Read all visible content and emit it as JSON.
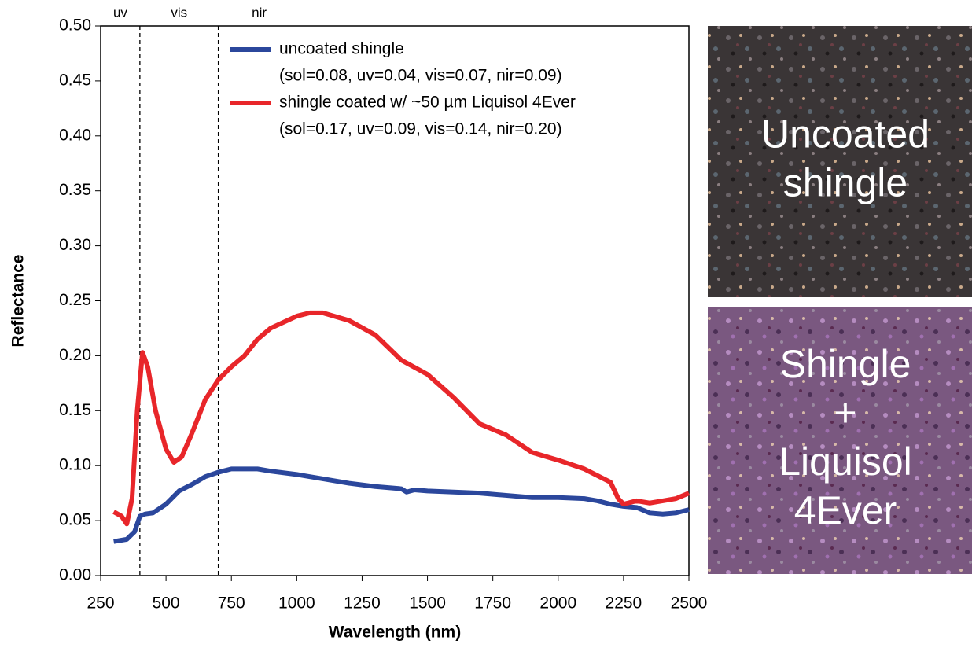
{
  "chart_data": {
    "type": "line",
    "x_label": "Wavelength (nm)",
    "y_label": "Reflectance",
    "xlim": [
      250,
      2500
    ],
    "xticks": [
      250,
      500,
      750,
      1000,
      1250,
      1500,
      1750,
      2000,
      2250,
      2500
    ],
    "ylim": [
      0,
      0.5
    ],
    "yticks": [
      {
        "value": 0,
        "label": "0.00"
      },
      {
        "value": 0.05,
        "label": "0.05"
      },
      {
        "value": 0.1,
        "label": "0.10"
      },
      {
        "value": 0.15,
        "label": "0.15"
      },
      {
        "value": 0.2,
        "label": "0.20"
      },
      {
        "value": 0.25,
        "label": "0.25"
      },
      {
        "value": 0.3,
        "label": "0.30"
      },
      {
        "value": 0.35,
        "label": "0.35"
      },
      {
        "value": 0.4,
        "label": "0.40"
      },
      {
        "value": 0.45,
        "label": "0.45"
      },
      {
        "value": 0.5,
        "label": "0.50"
      }
    ],
    "vlines": [
      400,
      700
    ],
    "regions": [
      "uv",
      "vis",
      "nir"
    ],
    "series": [
      {
        "name": "uncoated shingle",
        "summary": "(sol=0.08, uv=0.04, vis=0.07, nir=0.09)",
        "color": "#2b479c",
        "x": [
          300,
          350,
          380,
          400,
          420,
          450,
          500,
          550,
          600,
          650,
          700,
          750,
          800,
          850,
          900,
          1000,
          1100,
          1200,
          1300,
          1400,
          1420,
          1450,
          1500,
          1600,
          1700,
          1800,
          1900,
          2000,
          2100,
          2150,
          2200,
          2250,
          2300,
          2350,
          2400,
          2450,
          2500
        ],
        "values": [
          0.031,
          0.033,
          0.04,
          0.054,
          0.056,
          0.057,
          0.065,
          0.077,
          0.083,
          0.09,
          0.094,
          0.097,
          0.097,
          0.097,
          0.095,
          0.092,
          0.088,
          0.084,
          0.081,
          0.079,
          0.076,
          0.078,
          0.077,
          0.076,
          0.075,
          0.073,
          0.071,
          0.071,
          0.07,
          0.068,
          0.065,
          0.063,
          0.062,
          0.057,
          0.056,
          0.057,
          0.06
        ]
      },
      {
        "name": "shingle coated w/ ~50 µm Liquisol 4Ever",
        "summary": "(sol=0.17, uv=0.09, vis=0.14, nir=0.20)",
        "color": "#e8262a",
        "x": [
          300,
          330,
          350,
          370,
          390,
          410,
          430,
          460,
          500,
          530,
          560,
          600,
          650,
          700,
          750,
          800,
          850,
          900,
          1000,
          1050,
          1100,
          1200,
          1300,
          1400,
          1500,
          1600,
          1700,
          1800,
          1900,
          2000,
          2100,
          2200,
          2230,
          2250,
          2300,
          2350,
          2400,
          2450,
          2500
        ],
        "values": [
          0.058,
          0.054,
          0.047,
          0.07,
          0.15,
          0.203,
          0.19,
          0.15,
          0.115,
          0.103,
          0.108,
          0.13,
          0.16,
          0.178,
          0.19,
          0.2,
          0.215,
          0.225,
          0.236,
          0.239,
          0.239,
          0.232,
          0.219,
          0.196,
          0.183,
          0.162,
          0.138,
          0.128,
          0.112,
          0.105,
          0.097,
          0.085,
          0.07,
          0.065,
          0.068,
          0.066,
          0.068,
          0.07,
          0.075
        ]
      }
    ]
  },
  "photos": [
    {
      "caption": [
        "Uncoated",
        "shingle"
      ]
    },
    {
      "caption": [
        "Shingle",
        "+",
        "Liquisol",
        "4Ever"
      ]
    }
  ]
}
